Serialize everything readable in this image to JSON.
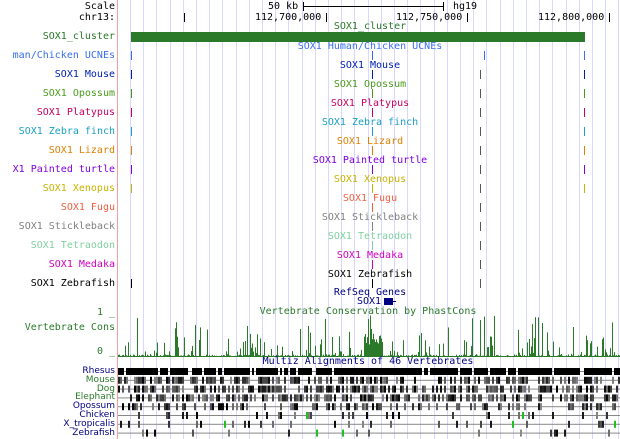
{
  "header": {
    "scale_label": "Scale",
    "scale_size": "50 kb",
    "assembly": "hg19",
    "chrom_label": "chr13:",
    "positions": [
      "112,700,000",
      "112,750,000",
      "112,800,000"
    ]
  },
  "cluster": {
    "label": "SOX1_cluster",
    "title": "SOX1_cluster",
    "color": "#2a7a2a"
  },
  "tracks": [
    {
      "label": "man/Chicken UCNEs",
      "title": "SOX1 Human/Chicken UCNEs",
      "color": "#3a6ff0"
    },
    {
      "label": "SOX1 Mouse",
      "title": "SOX1 Mouse",
      "color": "#0020b0"
    },
    {
      "label": "SOX1 Opossum",
      "title": "SOX1 Opossum",
      "color": "#4a9a1a"
    },
    {
      "label": "SOX1 Platypus",
      "title": "SOX1 Platypus",
      "color": "#c80060"
    },
    {
      "label": "SOX1 Zebra finch",
      "title": "SOX1 Zebra finch",
      "color": "#1aa0c0"
    },
    {
      "label": "SOX1 Lizard",
      "title": "SOX1 Lizard",
      "color": "#e08000"
    },
    {
      "label": "X1 Painted turtle",
      "title": "SOX1 Painted turtle",
      "color": "#8000e0"
    },
    {
      "label": "SOX1 Xenopus",
      "title": "SOX1 Xenopus",
      "color": "#c8b400"
    },
    {
      "label": "SOX1 Fugu",
      "title": "SOX1 Fugu",
      "color": "#f06040"
    },
    {
      "label": "SOX1 Stickleback",
      "title": "SOX1 Stickleback",
      "color": "#808080"
    },
    {
      "label": "SOX1 Tetraodon",
      "title": "SOX1 Tetraodon",
      "color": "#80d0a0"
    },
    {
      "label": "SOX1 Medaka",
      "title": "SOX1 Medaka",
      "color": "#d000c0"
    },
    {
      "label": "SOX1 Zebrafish",
      "title": "SOX1 Zebrafish",
      "color": "#000000"
    }
  ],
  "refseq": {
    "title": "RefSeq Genes",
    "gene": "SOX1",
    "color": "#000080"
  },
  "cons": {
    "title": "Vertebrate Conservation by PhastCons",
    "label": "Vertebrate Cons",
    "ymax": "1 _",
    "ymin": "0 _",
    "color": "#2a7a2a"
  },
  "multiz": {
    "title": "Multiz Alignments of 46 Vertebrates",
    "species": [
      "Rhesus",
      "Mouse",
      "Dog",
      "Elephant",
      "Opossum",
      "Chicken",
      "X_tropicalis",
      "Zebrafish"
    ],
    "species_colors": [
      "#000080",
      "#2a7a2a",
      "#2a7a2a",
      "#2a7a2a",
      "#000080",
      "#000080",
      "#000080",
      "#000080"
    ]
  }
}
